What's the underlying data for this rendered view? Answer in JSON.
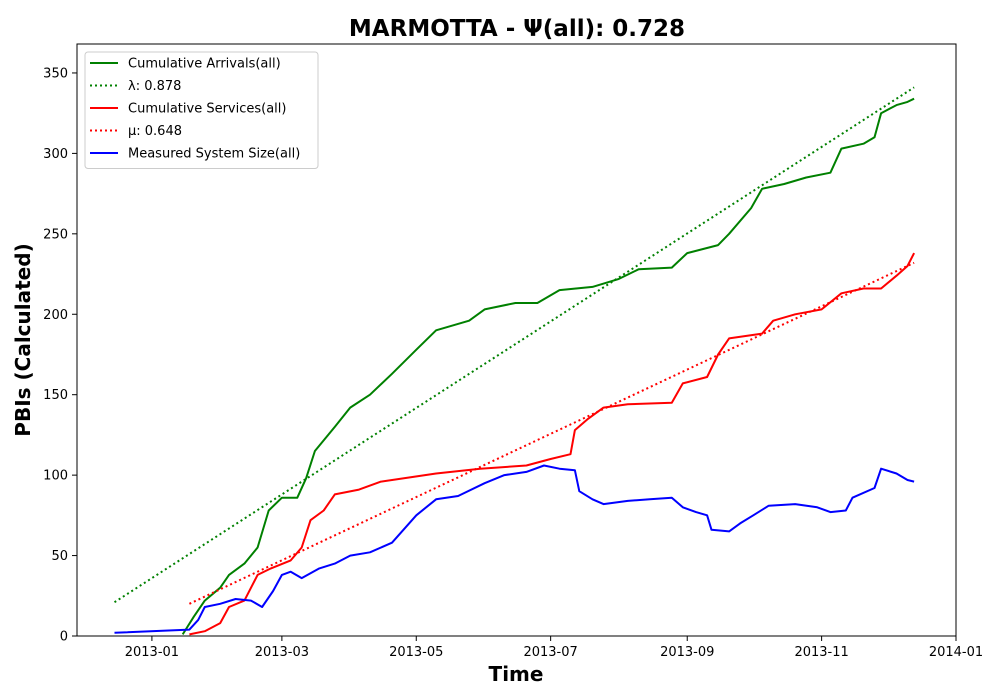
{
  "chart_data": {
    "type": "line",
    "title": "MARMOTTA -  Ψ(all): 0.728",
    "xlabel": "Time",
    "ylabel": "PBIs (Calculated)",
    "xlim": [
      "2012-11-28",
      "2014-01-01"
    ],
    "ylim": [
      0,
      368
    ],
    "x_ticks": [
      "2013-01",
      "2013-03",
      "2013-05",
      "2013-07",
      "2013-09",
      "2013-11",
      "2014-01"
    ],
    "x_tick_dates": [
      "2013-01-01",
      "2013-03-01",
      "2013-05-01",
      "2013-07-01",
      "2013-09-01",
      "2013-11-01",
      "2014-01-01"
    ],
    "y_ticks": [
      0,
      50,
      100,
      150,
      200,
      250,
      300,
      350
    ],
    "grid": false,
    "legend_position": "top-left",
    "series": [
      {
        "name": "Cumulative Arrivals(all)",
        "color": "#008000",
        "style": "solid",
        "points": [
          [
            "2013-01-15",
            1
          ],
          [
            "2013-01-20",
            12
          ],
          [
            "2013-01-25",
            22
          ],
          [
            "2013-02-01",
            30
          ],
          [
            "2013-02-05",
            38
          ],
          [
            "2013-02-12",
            45
          ],
          [
            "2013-02-18",
            55
          ],
          [
            "2013-02-23",
            78
          ],
          [
            "2013-03-01",
            86
          ],
          [
            "2013-03-08",
            86
          ],
          [
            "2013-03-12",
            98
          ],
          [
            "2013-03-16",
            115
          ],
          [
            "2013-03-25",
            130
          ],
          [
            "2013-04-01",
            142
          ],
          [
            "2013-04-10",
            150
          ],
          [
            "2013-04-20",
            163
          ],
          [
            "2013-05-01",
            178
          ],
          [
            "2013-05-10",
            190
          ],
          [
            "2013-05-25",
            196
          ],
          [
            "2013-06-01",
            203
          ],
          [
            "2013-06-15",
            207
          ],
          [
            "2013-06-25",
            207
          ],
          [
            "2013-07-05",
            215
          ],
          [
            "2013-07-20",
            217
          ],
          [
            "2013-08-01",
            222
          ],
          [
            "2013-08-10",
            228
          ],
          [
            "2013-08-25",
            229
          ],
          [
            "2013-09-01",
            238
          ],
          [
            "2013-09-15",
            243
          ],
          [
            "2013-09-20",
            250
          ],
          [
            "2013-09-30",
            266
          ],
          [
            "2013-10-05",
            278
          ],
          [
            "2013-10-15",
            281
          ],
          [
            "2013-10-25",
            285
          ],
          [
            "2013-11-05",
            288
          ],
          [
            "2013-11-10",
            303
          ],
          [
            "2013-11-20",
            306
          ],
          [
            "2013-11-25",
            310
          ],
          [
            "2013-11-28",
            325
          ],
          [
            "2013-12-05",
            330
          ],
          [
            "2013-12-10",
            332
          ],
          [
            "2013-12-13",
            334
          ]
        ]
      },
      {
        "name": "λ: 0.878",
        "color": "#008000",
        "style": "dotted",
        "points": [
          [
            "2012-12-15",
            21
          ],
          [
            "2013-12-13",
            341
          ]
        ]
      },
      {
        "name": "Cumulative Services(all)",
        "color": "#ff0000",
        "style": "solid",
        "points": [
          [
            "2013-01-18",
            1
          ],
          [
            "2013-01-25",
            3
          ],
          [
            "2013-02-01",
            8
          ],
          [
            "2013-02-05",
            18
          ],
          [
            "2013-02-12",
            22
          ],
          [
            "2013-02-18",
            38
          ],
          [
            "2013-02-24",
            42
          ],
          [
            "2013-03-05",
            47
          ],
          [
            "2013-03-10",
            55
          ],
          [
            "2013-03-14",
            72
          ],
          [
            "2013-03-20",
            78
          ],
          [
            "2013-03-25",
            88
          ],
          [
            "2013-04-05",
            91
          ],
          [
            "2013-04-15",
            96
          ],
          [
            "2013-04-30",
            99
          ],
          [
            "2013-05-10",
            101
          ],
          [
            "2013-05-30",
            104
          ],
          [
            "2013-06-20",
            106
          ],
          [
            "2013-07-01",
            110
          ],
          [
            "2013-07-10",
            113
          ],
          [
            "2013-07-12",
            128
          ],
          [
            "2013-07-18",
            135
          ],
          [
            "2013-07-25",
            142
          ],
          [
            "2013-08-05",
            144
          ],
          [
            "2013-08-25",
            145
          ],
          [
            "2013-08-30",
            157
          ],
          [
            "2013-09-10",
            161
          ],
          [
            "2013-09-15",
            175
          ],
          [
            "2013-09-20",
            185
          ],
          [
            "2013-10-05",
            188
          ],
          [
            "2013-10-10",
            196
          ],
          [
            "2013-10-20",
            200
          ],
          [
            "2013-11-01",
            203
          ],
          [
            "2013-11-10",
            213
          ],
          [
            "2013-11-20",
            216
          ],
          [
            "2013-11-28",
            216
          ],
          [
            "2013-12-05",
            224
          ],
          [
            "2013-12-10",
            230
          ],
          [
            "2013-12-13",
            238
          ]
        ]
      },
      {
        "name": "μ: 0.648",
        "color": "#ff0000",
        "style": "dotted",
        "points": [
          [
            "2013-01-18",
            20
          ],
          [
            "2013-12-13",
            232
          ]
        ]
      },
      {
        "name": "Measured System Size(all)",
        "color": "#0000ff",
        "style": "solid",
        "points": [
          [
            "2012-12-15",
            2
          ],
          [
            "2013-01-18",
            4
          ],
          [
            "2013-01-22",
            10
          ],
          [
            "2013-01-25",
            18
          ],
          [
            "2013-02-01",
            20
          ],
          [
            "2013-02-08",
            23
          ],
          [
            "2013-02-15",
            22
          ],
          [
            "2013-02-20",
            18
          ],
          [
            "2013-02-25",
            28
          ],
          [
            "2013-03-01",
            38
          ],
          [
            "2013-03-05",
            40
          ],
          [
            "2013-03-10",
            36
          ],
          [
            "2013-03-18",
            42
          ],
          [
            "2013-03-25",
            45
          ],
          [
            "2013-04-01",
            50
          ],
          [
            "2013-04-10",
            52
          ],
          [
            "2013-04-20",
            58
          ],
          [
            "2013-05-01",
            75
          ],
          [
            "2013-05-10",
            85
          ],
          [
            "2013-05-20",
            87
          ],
          [
            "2013-06-01",
            95
          ],
          [
            "2013-06-10",
            100
          ],
          [
            "2013-06-20",
            102
          ],
          [
            "2013-06-28",
            106
          ],
          [
            "2013-07-05",
            104
          ],
          [
            "2013-07-12",
            103
          ],
          [
            "2013-07-14",
            90
          ],
          [
            "2013-07-20",
            85
          ],
          [
            "2013-07-25",
            82
          ],
          [
            "2013-08-05",
            84
          ],
          [
            "2013-08-15",
            85
          ],
          [
            "2013-08-25",
            86
          ],
          [
            "2013-08-30",
            80
          ],
          [
            "2013-09-05",
            77
          ],
          [
            "2013-09-10",
            75
          ],
          [
            "2013-09-12",
            66
          ],
          [
            "2013-09-20",
            65
          ],
          [
            "2013-09-25",
            70
          ],
          [
            "2013-10-01",
            75
          ],
          [
            "2013-10-08",
            81
          ],
          [
            "2013-10-20",
            82
          ],
          [
            "2013-10-30",
            80
          ],
          [
            "2013-11-05",
            77
          ],
          [
            "2013-11-12",
            78
          ],
          [
            "2013-11-15",
            86
          ],
          [
            "2013-11-25",
            92
          ],
          [
            "2013-11-28",
            104
          ],
          [
            "2013-12-05",
            101
          ],
          [
            "2013-12-10",
            97
          ],
          [
            "2013-12-13",
            96
          ]
        ]
      }
    ]
  }
}
